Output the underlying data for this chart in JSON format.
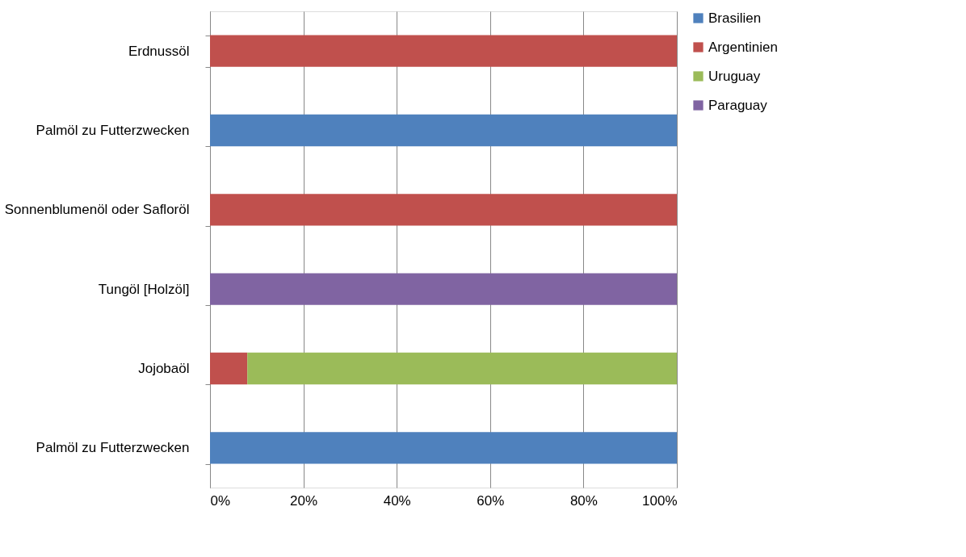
{
  "chart_data": {
    "type": "bar",
    "orientation": "horizontal",
    "stacked": true,
    "categories": [
      "Erdnussöl",
      "Palmöl zu Futterzwecken",
      "Sonnenblumenöl oder Safloröl",
      "Tungöl [Holzöl]",
      "Jojobaöl",
      "Palmöl zu Futterzwecken"
    ],
    "series": [
      {
        "name": "Brasilien",
        "color": "#4f81bd",
        "values": [
          null,
          100,
          null,
          null,
          null,
          100
        ]
      },
      {
        "name": "Argentinien",
        "color": "#c0504d",
        "values": [
          100,
          null,
          100,
          null,
          8,
          null
        ]
      },
      {
        "name": "Uruguay",
        "color": "#9bbb59",
        "values": [
          null,
          null,
          null,
          null,
          92,
          null
        ]
      },
      {
        "name": "Paraguay",
        "color": "#8064a2",
        "values": [
          null,
          null,
          null,
          100,
          null,
          null
        ]
      }
    ],
    "xlim": [
      0,
      100
    ],
    "xticks": [
      {
        "value": 0,
        "label": "0%"
      },
      {
        "value": 20,
        "label": "20%"
      },
      {
        "value": 40,
        "label": "40%"
      },
      {
        "value": 60,
        "label": "60%"
      },
      {
        "value": 80,
        "label": "80%"
      },
      {
        "value": 100,
        "label": "100%"
      }
    ],
    "grid": "x",
    "legend": "right"
  }
}
